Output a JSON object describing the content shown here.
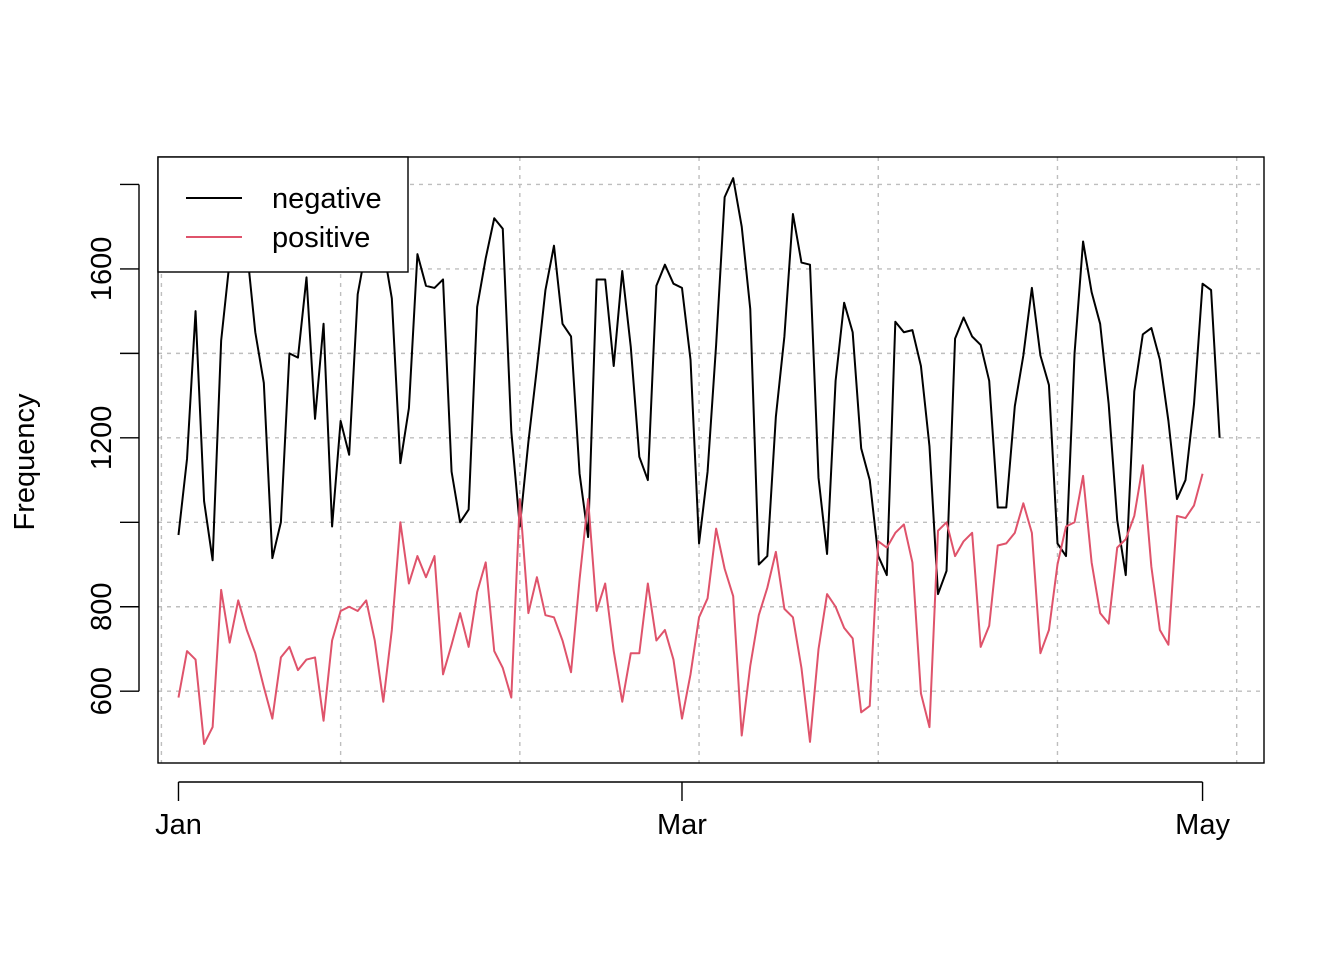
{
  "chart_data": {
    "type": "line",
    "title": "",
    "xlabel": "",
    "ylabel": "Frequency",
    "x_ticks": [
      "Jan",
      "Mar",
      "May"
    ],
    "y_ticks": [
      600,
      800,
      1200,
      1600
    ],
    "x_range_days": [
      -2.4,
      127.2
    ],
    "ylim": [
      430,
      1865
    ],
    "grid": true,
    "legend_position": "top-left",
    "colors": {
      "negative": "#000000",
      "positive": "#DF536B",
      "grid": "#BEBEBE"
    },
    "series": [
      {
        "name": "negative",
        "color": "#000000",
        "values": [
          970,
          1150,
          1500,
          1050,
          910,
          1430,
          1620,
          1630,
          1650,
          1450,
          1330,
          915,
          1000,
          1400,
          1390,
          1580,
          1245,
          1470,
          990,
          1240,
          1160,
          1540,
          1650,
          1640,
          1650,
          1530,
          1140,
          1270,
          1635,
          1560,
          1555,
          1575,
          1120,
          1000,
          1030,
          1510,
          1625,
          1720,
          1695,
          1215,
          990,
          1190,
          1365,
          1550,
          1655,
          1470,
          1440,
          1115,
          965,
          1575,
          1575,
          1370,
          1595,
          1415,
          1155,
          1100,
          1560,
          1610,
          1565,
          1555,
          1385,
          950,
          1120,
          1420,
          1770,
          1815,
          1700,
          1505,
          900,
          920,
          1250,
          1440,
          1730,
          1615,
          1610,
          1105,
          925,
          1335,
          1520,
          1450,
          1175,
          1100,
          920,
          875,
          1475,
          1450,
          1455,
          1370,
          1180,
          830,
          885,
          1435,
          1485,
          1440,
          1420,
          1335,
          1035,
          1035,
          1275,
          1395,
          1555,
          1395,
          1325,
          950,
          920,
          1400,
          1665,
          1545,
          1470,
          1280,
          1005,
          875,
          1310,
          1445,
          1460,
          1385,
          1240,
          1055,
          1100,
          1280,
          1565,
          1550,
          1200
        ]
      },
      {
        "name": "positive",
        "color": "#DF536B",
        "values": [
          585,
          695,
          675,
          475,
          515,
          840,
          715,
          815,
          745,
          690,
          610,
          535,
          680,
          705,
          650,
          675,
          680,
          530,
          720,
          790,
          800,
          790,
          815,
          720,
          575,
          745,
          1000,
          855,
          920,
          870,
          920,
          640,
          710,
          785,
          705,
          835,
          905,
          695,
          655,
          585,
          1055,
          785,
          870,
          780,
          775,
          720,
          645,
          865,
          1055,
          790,
          855,
          695,
          575,
          690,
          690,
          855,
          720,
          745,
          675,
          535,
          640,
          775,
          820,
          985,
          890,
          825,
          495,
          660,
          780,
          845,
          930,
          795,
          775,
          655,
          480,
          700,
          830,
          800,
          750,
          725,
          550,
          565,
          955,
          940,
          975,
          995,
          905,
          595,
          515,
          980,
          1000,
          920,
          955,
          975,
          705,
          755,
          945,
          950,
          975,
          1045,
          975,
          690,
          745,
          900,
          990,
          1000,
          1110,
          905,
          785,
          760,
          940,
          960,
          1015,
          1135,
          895,
          745,
          710,
          1015,
          1010,
          1040,
          1115
        ]
      }
    ]
  }
}
